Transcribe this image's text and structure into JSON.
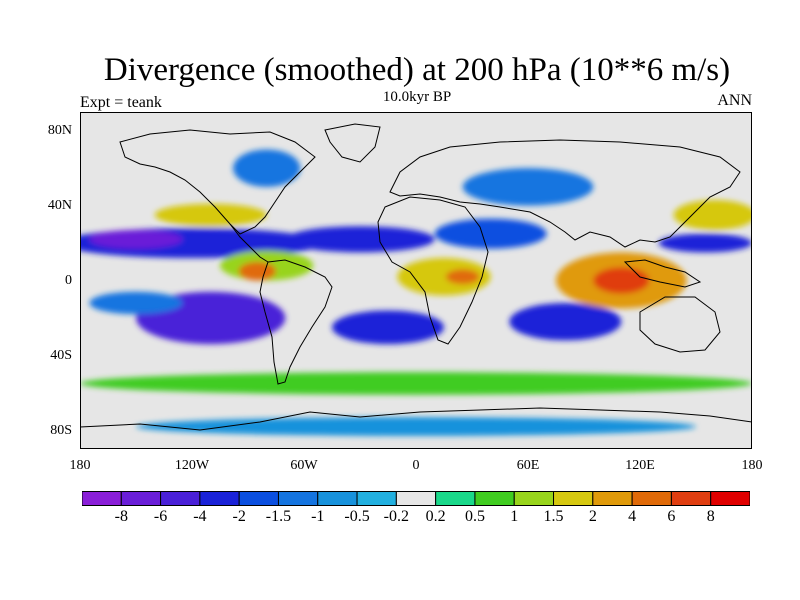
{
  "chart_data": {
    "type": "heatmap",
    "title": "Divergence (smoothed) at 200 hPa (10**6 m/s)",
    "subtitle": "10.0kyr BP",
    "left_label": "Expt = teank",
    "right_label": "ANN",
    "x_ticks": [
      {
        "value": -180,
        "label": "180"
      },
      {
        "value": -120,
        "label": "120W"
      },
      {
        "value": -60,
        "label": "60W"
      },
      {
        "value": 0,
        "label": "0"
      },
      {
        "value": 60,
        "label": "60E"
      },
      {
        "value": 120,
        "label": "120E"
      },
      {
        "value": 180,
        "label": "180"
      }
    ],
    "y_ticks": [
      {
        "value": 80,
        "label": "80N"
      },
      {
        "value": 40,
        "label": "40N"
      },
      {
        "value": 0,
        "label": "0"
      },
      {
        "value": -40,
        "label": "40S"
      },
      {
        "value": -80,
        "label": "80S"
      }
    ],
    "xlim": [
      -180,
      180
    ],
    "ylim": [
      -90,
      90
    ],
    "colorbar": {
      "levels": [
        "-8",
        "-6",
        "-4",
        "-2",
        "-1.5",
        "-1",
        "-0.5",
        "-0.2",
        "0.2",
        "0.5",
        "1",
        "1.5",
        "2",
        "4",
        "6",
        "8"
      ],
      "colors": [
        "#8a1ed8",
        "#6a1ed8",
        "#4a20d8",
        "#1a22d8",
        "#0b4fe0",
        "#1474e0",
        "#1892dc",
        "#22b0e0",
        "#e6e6e6",
        "#1ad88a",
        "#40cc20",
        "#98d41c",
        "#d6c810",
        "#e09a0a",
        "#e06a08",
        "#e03e10",
        "#e00000"
      ]
    },
    "blobs": [
      {
        "lon": -120,
        "lat": 20,
        "rx": 70,
        "ry": 8,
        "level": 3
      },
      {
        "lon": -150,
        "lat": 22,
        "rx": 25,
        "ry": 5,
        "level": 1
      },
      {
        "lon": -30,
        "lat": 22,
        "rx": 40,
        "ry": 7,
        "level": 3
      },
      {
        "lon": 40,
        "lat": 25,
        "rx": 30,
        "ry": 8,
        "level": 4
      },
      {
        "lon": 155,
        "lat": 20,
        "rx": 25,
        "ry": 5,
        "level": 3
      },
      {
        "lon": 60,
        "lat": 50,
        "rx": 35,
        "ry": 10,
        "level": 5
      },
      {
        "lon": -80,
        "lat": 60,
        "rx": 18,
        "ry": 10,
        "level": 5
      },
      {
        "lon": -110,
        "lat": -20,
        "rx": 40,
        "ry": 14,
        "level": 2
      },
      {
        "lon": -15,
        "lat": -25,
        "rx": 30,
        "ry": 9,
        "level": 3
      },
      {
        "lon": 80,
        "lat": -22,
        "rx": 30,
        "ry": 10,
        "level": 3
      },
      {
        "lon": -150,
        "lat": -12,
        "rx": 25,
        "ry": 6,
        "level": 5
      },
      {
        "lon": -80,
        "lat": 8,
        "rx": 25,
        "ry": 8,
        "level": 11
      },
      {
        "lon": -85,
        "lat": 5,
        "rx": 10,
        "ry": 5,
        "level": 14
      },
      {
        "lon": 15,
        "lat": 2,
        "rx": 25,
        "ry": 10,
        "level": 12
      },
      {
        "lon": 25,
        "lat": 2,
        "rx": 9,
        "ry": 4,
        "level": 14
      },
      {
        "lon": 110,
        "lat": 0,
        "rx": 35,
        "ry": 15,
        "level": 13
      },
      {
        "lon": 110,
        "lat": 0,
        "rx": 15,
        "ry": 7,
        "level": 15
      },
      {
        "lon": 160,
        "lat": 35,
        "rx": 22,
        "ry": 8,
        "level": 12
      },
      {
        "lon": -110,
        "lat": 35,
        "rx": 30,
        "ry": 6,
        "level": 12
      },
      {
        "lon": 0,
        "lat": -55,
        "rx": 180,
        "ry": 6,
        "level": 10
      },
      {
        "lon": 0,
        "lat": -78,
        "rx": 150,
        "ry": 5,
        "level": 6
      }
    ]
  }
}
